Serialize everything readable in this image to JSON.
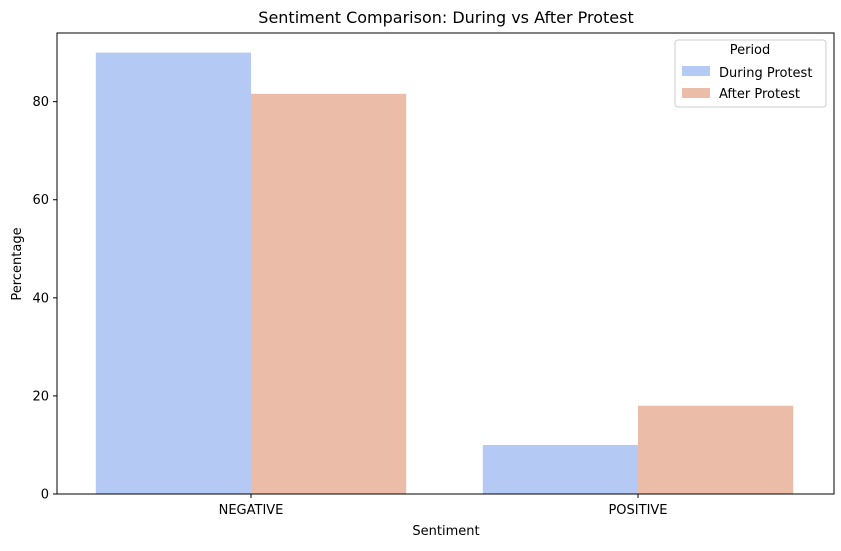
{
  "chart_data": {
    "type": "bar",
    "title": "Sentiment Comparison: During vs After Protest",
    "xlabel": "Sentiment",
    "ylabel": "Percentage",
    "categories": [
      "NEGATIVE",
      "POSITIVE"
    ],
    "series": [
      {
        "name": "During Protest",
        "values": [
          90.0,
          10.0
        ],
        "color": "#b4c9f4"
      },
      {
        "name": "After Protest",
        "values": [
          81.6,
          18.0
        ],
        "color": "#ebbca8"
      }
    ],
    "ylim": [
      0,
      94
    ],
    "yticks": [
      0,
      20,
      40,
      60,
      80
    ],
    "grid": false,
    "legend": {
      "title": "Period",
      "position": "top-right"
    }
  }
}
